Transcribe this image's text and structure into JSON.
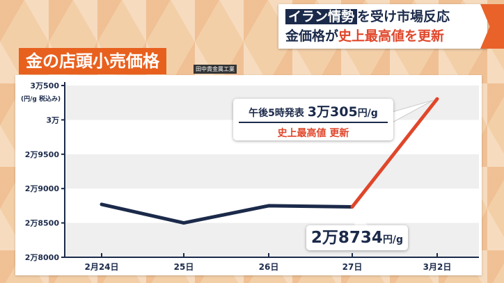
{
  "headline": {
    "highlight": "イラン情勢",
    "line1_rest": "を受け市場反応",
    "line2_a": "金価格が",
    "line2_b": "史上最高値を更新"
  },
  "title": "金の店頭小売価格",
  "source": "田中貴金属工業",
  "callout_high": {
    "line1": "午後5時発表",
    "value": "3万305",
    "unit": "円/g",
    "line2": "史上最高値 更新"
  },
  "callout_low": {
    "value": "2万8734",
    "unit": "円/g"
  },
  "colors": {
    "navy": "#1b2a4a",
    "red": "#e0462a",
    "orange": "#e8601e"
  },
  "chart_data": {
    "type": "line",
    "title": "金の店頭小売価格",
    "ylabel": "(円/g 税込み)",
    "categories": [
      "2月24日",
      "25日",
      "26日",
      "27日",
      "3月2日"
    ],
    "values": [
      28770,
      28500,
      28750,
      28734,
      30305
    ],
    "ylim": [
      28000,
      30500
    ],
    "yticks": [
      30500,
      30000,
      29500,
      29000,
      28500,
      28000
    ],
    "ytick_labels": [
      "3万500",
      "3万",
      "2万9500",
      "2万9000",
      "2万8500",
      "2万8000"
    ],
    "grid": "alternating bands",
    "highlight_segment": {
      "from": "27日",
      "to": "3月2日",
      "color": "#e0462a"
    }
  }
}
